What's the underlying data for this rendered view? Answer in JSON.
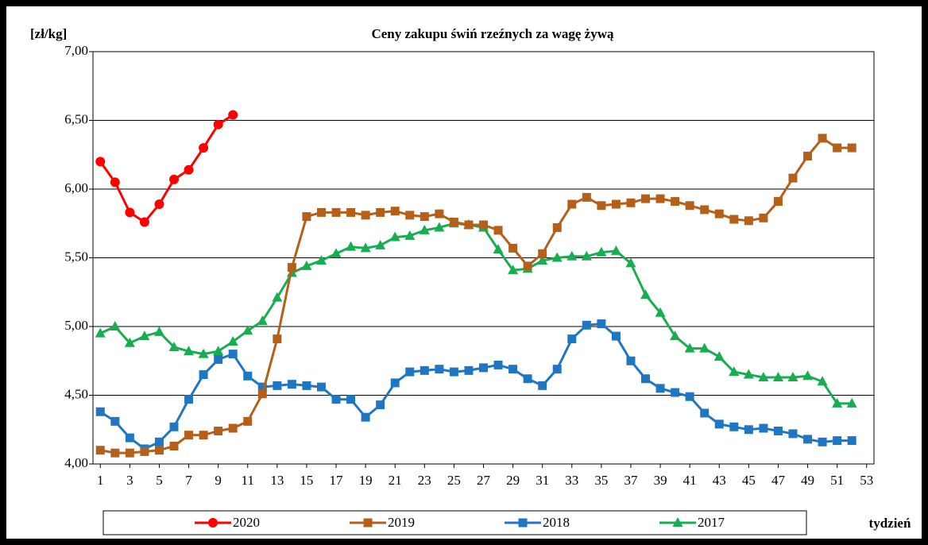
{
  "chart_data": {
    "type": "line",
    "title": "Ceny zakupu świń rzeźnych  za wagę żywą",
    "y_label": "[zł/kg]",
    "x_label": "tydzień",
    "x": [
      1,
      2,
      3,
      4,
      5,
      6,
      7,
      8,
      9,
      10,
      11,
      12,
      13,
      14,
      15,
      16,
      17,
      18,
      19,
      20,
      21,
      22,
      23,
      24,
      25,
      26,
      27,
      28,
      29,
      30,
      31,
      32,
      33,
      34,
      35,
      36,
      37,
      38,
      39,
      40,
      41,
      42,
      43,
      44,
      45,
      46,
      47,
      48,
      49,
      50,
      51,
      52
    ],
    "xlim": [
      0.5,
      53.5
    ],
    "xticks": [
      1,
      3,
      5,
      7,
      9,
      11,
      13,
      15,
      17,
      19,
      21,
      23,
      25,
      27,
      29,
      31,
      33,
      35,
      37,
      39,
      41,
      43,
      45,
      47,
      49,
      51,
      53
    ],
    "ylim": [
      4,
      7
    ],
    "yticks": [
      {
        "value": 4,
        "label": "4,00"
      },
      {
        "value": 4.5,
        "label": "4,50"
      },
      {
        "value": 5,
        "label": "5,00"
      },
      {
        "value": 5.5,
        "label": "5,50"
      },
      {
        "value": 6,
        "label": "6,00"
      },
      {
        "value": 6.5,
        "label": "6,50"
      },
      {
        "value": 7,
        "label": "7,00"
      }
    ],
    "grid": true,
    "legend": "bottom",
    "series": [
      {
        "name": "2020",
        "color": "#ff0000",
        "marker": "circle",
        "values": [
          6.2,
          6.05,
          5.83,
          5.76,
          5.89,
          6.07,
          6.14,
          6.3,
          6.47,
          6.54,
          null,
          null,
          null,
          null,
          null,
          null,
          null,
          null,
          null,
          null,
          null,
          null,
          null,
          null,
          null,
          null,
          null,
          null,
          null,
          null,
          null,
          null,
          null,
          null,
          null,
          null,
          null,
          null,
          null,
          null,
          null,
          null,
          null,
          null,
          null,
          null,
          null,
          null,
          null,
          null,
          null,
          null
        ]
      },
      {
        "name": "2019",
        "color": "#b5601a",
        "marker": "square",
        "values": [
          4.1,
          4.08,
          4.08,
          4.09,
          4.1,
          4.13,
          4.21,
          4.21,
          4.24,
          4.26,
          4.31,
          4.51,
          4.91,
          5.43,
          5.8,
          5.83,
          5.83,
          5.83,
          5.81,
          5.83,
          5.84,
          5.81,
          5.8,
          5.82,
          5.76,
          5.74,
          5.74,
          5.7,
          5.57,
          5.44,
          5.53,
          5.72,
          5.89,
          5.94,
          5.88,
          5.89,
          5.9,
          5.93,
          5.93,
          5.91,
          5.88,
          5.85,
          5.82,
          5.78,
          5.77,
          5.79,
          5.91,
          6.08,
          6.24,
          6.37,
          6.3,
          6.3
        ]
      },
      {
        "name": "2018",
        "color": "#1f77c4",
        "marker": "square",
        "values": [
          4.38,
          4.31,
          4.19,
          4.11,
          4.16,
          4.27,
          4.47,
          4.65,
          4.76,
          4.8,
          4.64,
          4.56,
          4.57,
          4.58,
          4.57,
          4.56,
          4.47,
          4.47,
          4.34,
          4.43,
          4.59,
          4.67,
          4.68,
          4.69,
          4.67,
          4.68,
          4.7,
          4.72,
          4.69,
          4.62,
          4.57,
          4.69,
          4.91,
          5.01,
          5.02,
          4.93,
          4.75,
          4.62,
          4.55,
          4.52,
          4.49,
          4.37,
          4.29,
          4.27,
          4.25,
          4.26,
          4.24,
          4.22,
          4.18,
          4.16,
          4.17,
          4.17
        ]
      },
      {
        "name": "2017",
        "color": "#19ad52",
        "marker": "triangle",
        "values": [
          4.95,
          5.0,
          4.88,
          4.93,
          4.96,
          4.85,
          4.82,
          4.8,
          4.82,
          4.89,
          4.97,
          5.04,
          5.21,
          5.39,
          5.44,
          5.48,
          5.53,
          5.58,
          5.57,
          5.59,
          5.65,
          5.66,
          5.7,
          5.72,
          5.75,
          5.74,
          5.72,
          5.56,
          5.41,
          5.42,
          5.48,
          5.5,
          5.51,
          5.51,
          5.54,
          5.55,
          5.46,
          5.23,
          5.1,
          4.93,
          4.84,
          4.84,
          4.78,
          4.67,
          4.65,
          4.63,
          4.63,
          4.63,
          4.64,
          4.6,
          4.44,
          4.44
        ]
      }
    ]
  }
}
